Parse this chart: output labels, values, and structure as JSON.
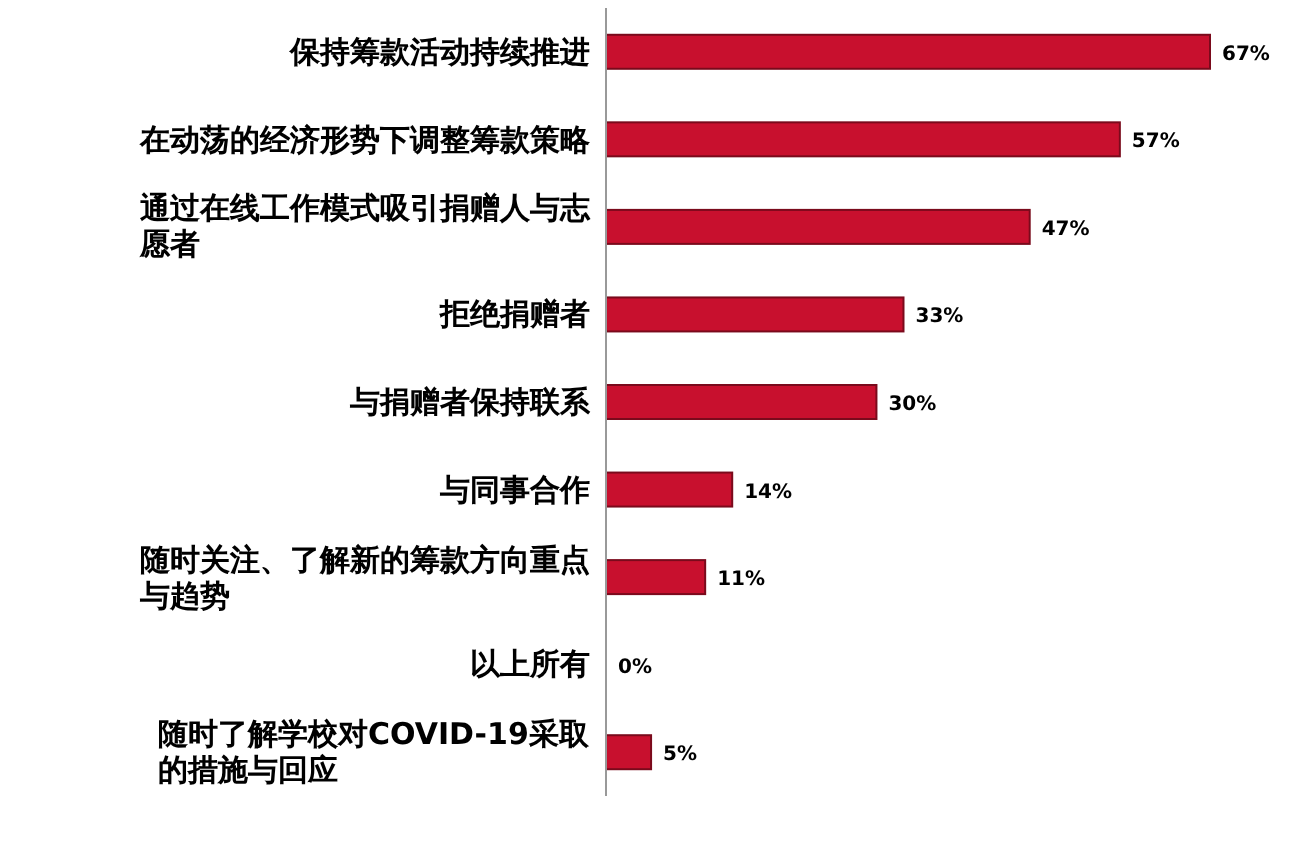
{
  "chart_data": {
    "type": "bar",
    "orientation": "horizontal",
    "categories": [
      "保持筹款活动持续推进",
      "在动荡的经济形势下调整筹款策略",
      "通过在线工作模式吸引捐赠人与志愿者",
      "拒绝捐赠者",
      "与捐赠者保持联系",
      "与同事合作",
      "随时关注、了解新的筹款方向重点与趋势",
      "以上所有",
      "随时了解学校对COVID-19采取的措施与回应"
    ],
    "values": [
      67,
      57,
      47,
      33,
      30,
      14,
      11,
      0,
      5
    ],
    "value_labels": [
      "67%",
      "57%",
      "47%",
      "33%",
      "30%",
      "14%",
      "11%",
      "0%",
      "5%"
    ],
    "color": "#c8102e"
  }
}
